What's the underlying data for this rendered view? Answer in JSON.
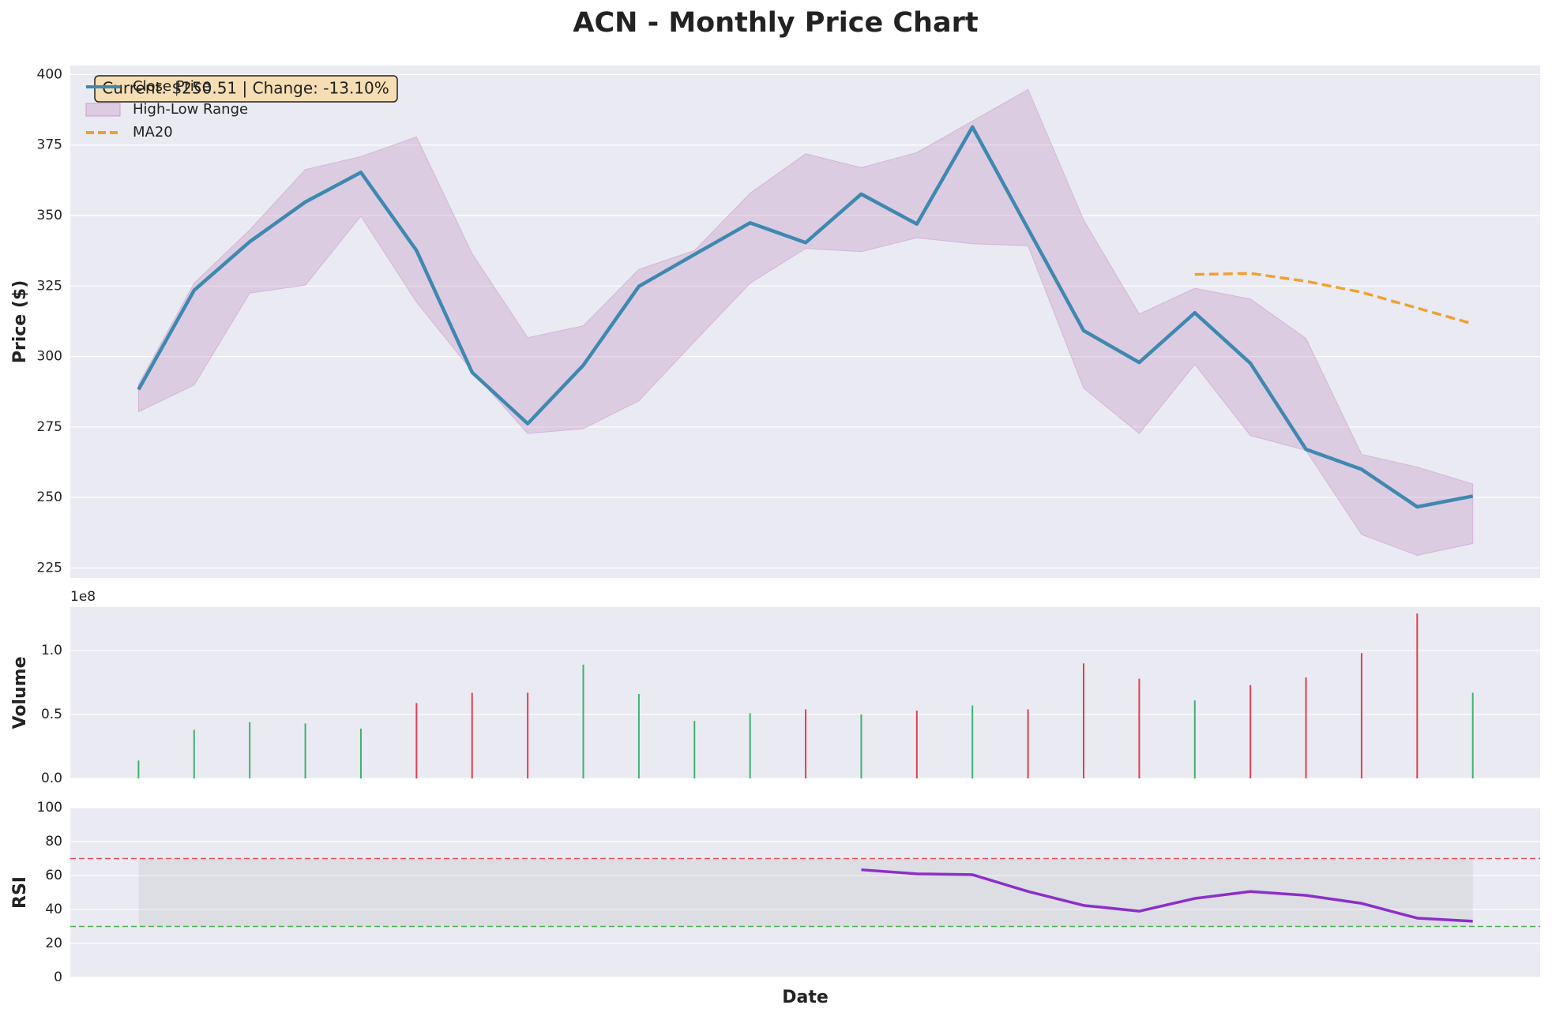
{
  "chart_data": [
    {
      "type": "line",
      "title": "ACN - Monthly Price Chart",
      "ylabel": "Price ($)",
      "annotation": "Current: $250.51 | Change: -13.10%",
      "categories": [
        null,
        null,
        null,
        null,
        null,
        null,
        null,
        null,
        null,
        null,
        null,
        null,
        null,
        null,
        null,
        null,
        null,
        null,
        null,
        null,
        null,
        null,
        null,
        null,
        null
      ],
      "ylim": [
        221.5,
        403.2
      ],
      "yticks": [
        225,
        250,
        275,
        300,
        325,
        350,
        375,
        400
      ],
      "grid": true,
      "legend": "upper left",
      "series": [
        {
          "name": "Close Price",
          "color": "#3f88b0",
          "values": [
            288.3,
            323.5,
            340.7,
            354.8,
            365.3,
            337.6,
            294.4,
            276.2,
            296.9,
            324.9,
            336.2,
            347.4,
            340.4,
            357.6,
            347.0,
            381.4,
            345.3,
            309.2,
            297.9,
            315.5,
            297.6,
            267.1,
            260.0,
            246.7,
            250.5
          ]
        },
        {
          "name": "High-Low Range",
          "color": "#c9a0c9",
          "high": [
            290.2,
            326.0,
            344.9,
            366.3,
            370.9,
            377.9,
            336.5,
            306.7,
            310.9,
            330.9,
            337.6,
            357.9,
            371.9,
            367.0,
            372.3,
            383.5,
            394.7,
            348.4,
            315.1,
            324.2,
            320.4,
            306.4,
            265.3,
            260.8,
            254.8
          ],
          "low": [
            280.4,
            289.9,
            322.5,
            325.3,
            349.8,
            319.3,
            294.8,
            272.7,
            274.4,
            284.3,
            305.3,
            326.0,
            338.3,
            337.2,
            342.1,
            340.0,
            339.3,
            288.8,
            272.7,
            297.2,
            272.0,
            266.7,
            236.9,
            229.5,
            233.7
          ]
        },
        {
          "name": "MA20",
          "color": "#f0a030",
          "dashed": true,
          "values": [
            null,
            null,
            null,
            null,
            null,
            null,
            null,
            null,
            null,
            null,
            null,
            null,
            null,
            null,
            null,
            null,
            null,
            null,
            null,
            329.1,
            329.5,
            326.7,
            322.8,
            317.2,
            311.6
          ]
        }
      ]
    },
    {
      "type": "bar",
      "ylabel": "Volume",
      "y_offset_label": "1e8",
      "values": [
        14000000,
        38000000,
        44000000,
        43000000,
        39000000,
        59000000,
        67000000,
        67000000,
        89000000,
        66000000,
        45000000,
        51000000,
        54000000,
        50000000,
        53000000,
        57000000,
        54000000,
        90000000,
        78000000,
        61000000,
        73000000,
        79000000,
        98000000,
        129000000,
        67000000
      ],
      "colors": [
        "#3cb371",
        "#3cb371",
        "#3cb371",
        "#3cb371",
        "#3cb371",
        "#e04050",
        "#e04050",
        "#e04050",
        "#3cb371",
        "#3cb371",
        "#3cb371",
        "#3cb371",
        "#e04050",
        "#3cb371",
        "#e04050",
        "#3cb371",
        "#e04050",
        "#e04050",
        "#e04050",
        "#3cb371",
        "#e04050",
        "#e04050",
        "#e04050",
        "#e04050",
        "#3cb371"
      ],
      "ylim": [
        0,
        134000000
      ],
      "yticks": [
        {
          "value": 0,
          "label": "0.0"
        },
        {
          "value": 50000000,
          "label": "0.5"
        },
        {
          "value": 100000000,
          "label": "1.0"
        }
      ],
      "grid": true
    },
    {
      "type": "line",
      "ylabel": "RSI",
      "xlabel": "Date",
      "color": "#8b2fc9",
      "values": [
        null,
        null,
        null,
        null,
        null,
        null,
        null,
        null,
        null,
        null,
        null,
        null,
        null,
        63.4,
        61.0,
        60.5,
        50.6,
        42.4,
        39.0,
        46.5,
        50.6,
        48.3,
        43.6,
        34.9,
        33.1
      ],
      "ylim": [
        0,
        100
      ],
      "yticks": [
        0,
        20,
        40,
        60,
        80,
        100
      ],
      "grid": true,
      "band": [
        30,
        70
      ],
      "reference_lines": [
        {
          "value": 70,
          "color": "#e8505b"
        },
        {
          "value": 30,
          "color": "#4caf50"
        }
      ]
    }
  ]
}
